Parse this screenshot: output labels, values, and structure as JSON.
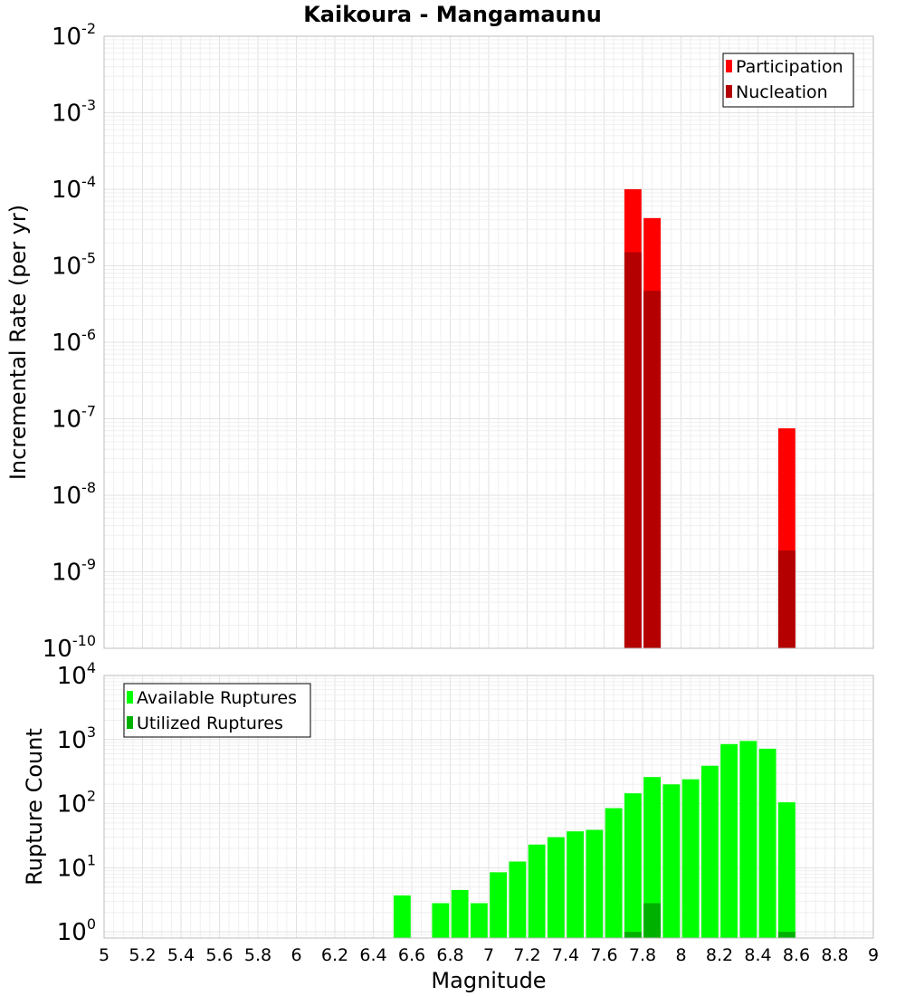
{
  "chart_data": [
    {
      "type": "bar",
      "title": "Kaikoura - Mangamaunu",
      "ylabel": "Incremental Rate (per yr)",
      "xlabel": "",
      "xlim": [
        5,
        9
      ],
      "ylim": [
        1e-10,
        0.01
      ],
      "yscale": "log",
      "grid": true,
      "legend_position": "top-right",
      "legend": [
        "Participation",
        "Nucleation"
      ],
      "bar_width": 0.1,
      "series": [
        {
          "name": "Participation",
          "color": "#ff0000",
          "x": [
            7.75,
            7.85,
            8.55
          ],
          "values": [
            0.0001,
            4.2e-05,
            7.5e-08
          ]
        },
        {
          "name": "Nucleation",
          "color": "#b40000",
          "x": [
            7.75,
            7.85,
            8.55
          ],
          "values": [
            1.5e-05,
            4.7e-06,
            1.9e-09
          ]
        }
      ],
      "y_ticks": [
        {
          "base": "10",
          "exp": "-10"
        },
        {
          "base": "10",
          "exp": "-9"
        },
        {
          "base": "10",
          "exp": "-8"
        },
        {
          "base": "10",
          "exp": "-7"
        },
        {
          "base": "10",
          "exp": "-6"
        },
        {
          "base": "10",
          "exp": "-5"
        },
        {
          "base": "10",
          "exp": "-4"
        },
        {
          "base": "10",
          "exp": "-3"
        },
        {
          "base": "10",
          "exp": "-2"
        }
      ]
    },
    {
      "type": "bar",
      "title": "",
      "ylabel": "Rupture Count",
      "xlabel": "Magnitude",
      "xlim": [
        5,
        9
      ],
      "ylim": [
        0.8,
        10000
      ],
      "yscale": "log",
      "grid": true,
      "legend_position": "top-left",
      "legend": [
        "Available Ruptures",
        "Utilized Ruptures"
      ],
      "bar_width": 0.1,
      "series": [
        {
          "name": "Available Ruptures",
          "color": "#00ff00",
          "x": [
            6.55,
            6.75,
            6.85,
            6.95,
            7.05,
            7.15,
            7.25,
            7.35,
            7.45,
            7.55,
            7.65,
            7.75,
            7.85,
            7.95,
            8.05,
            8.15,
            8.25,
            8.35,
            8.45,
            8.55
          ],
          "values": [
            3.7,
            2.8,
            4.5,
            2.8,
            8.5,
            12.5,
            23,
            30,
            37,
            39,
            85,
            145,
            260,
            200,
            240,
            390,
            850,
            950,
            720,
            105
          ]
        },
        {
          "name": "Utilized Ruptures",
          "color": "#00b000",
          "x": [
            7.75,
            7.85,
            8.55
          ],
          "values": [
            1,
            2.8,
            1
          ]
        }
      ],
      "x_ticks": [
        "5",
        "5.2",
        "5.4",
        "5.6",
        "5.8",
        "6",
        "6.2",
        "6.4",
        "6.6",
        "6.8",
        "7",
        "7.2",
        "7.4",
        "7.6",
        "7.8",
        "8",
        "8.2",
        "8.4",
        "8.6",
        "8.8",
        "9"
      ],
      "y_ticks": [
        {
          "base": "10",
          "exp": "0"
        },
        {
          "base": "10",
          "exp": "1"
        },
        {
          "base": "10",
          "exp": "2"
        },
        {
          "base": "10",
          "exp": "3"
        },
        {
          "base": "10",
          "exp": "4"
        }
      ]
    }
  ]
}
